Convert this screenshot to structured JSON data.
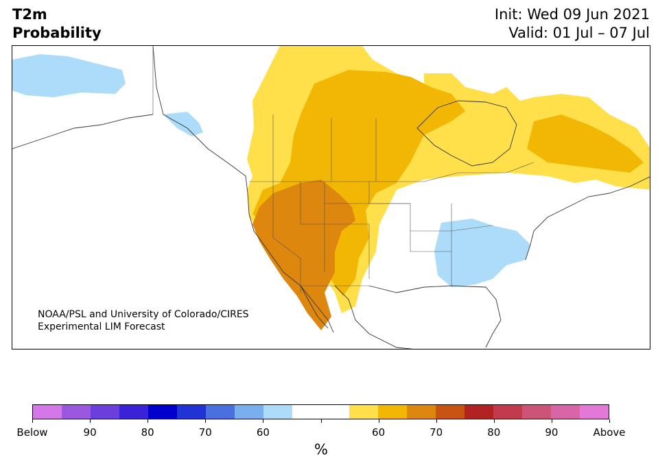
{
  "header": {
    "title_line1": "T2m",
    "title_line2": "Probability",
    "init": "Init: Wed 09 Jun 2021",
    "valid": "Valid: 01 Jul – 07 Jul"
  },
  "credit": {
    "line1": "NOAA/PSL and University of Colorado/CIRES",
    "line2": "Experimental LIM Forecast"
  },
  "colorbar": {
    "colors": [
      "#d478e8",
      "#9b57e0",
      "#6a3fdc",
      "#3b22d6",
      "#0000cc",
      "#2233d6",
      "#4a6fdf",
      "#79aeef",
      "#acdcfa",
      "#ffffff",
      "#ffffff",
      "#ffe04a",
      "#f2b705",
      "#de870e",
      "#c85414",
      "#b22222",
      "#c23a4e",
      "#cc5478",
      "#d765a8",
      "#e478d8"
    ],
    "labels": [
      "Below",
      "90",
      "80",
      "70",
      "60",
      "",
      "60",
      "70",
      "80",
      "90",
      "Above"
    ],
    "unit": "%"
  },
  "legend_colors": {
    "light_blue": "#acdcfa",
    "light_yellow": "#ffe04a",
    "gold": "#f2b705",
    "orange": "#de870e"
  }
}
